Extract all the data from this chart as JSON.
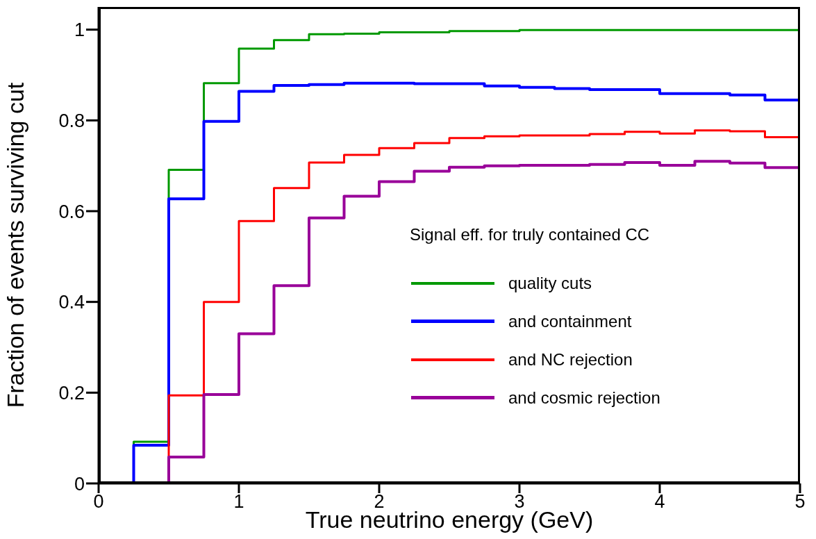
{
  "chart_data": {
    "type": "histogram",
    "xlabel": "True neutrino energy (GeV)",
    "ylabel": "Fraction of events surviving cut",
    "legend_title": "Signal eff. for truly contained CC",
    "legend": "right",
    "grid": false,
    "bins": [
      0,
      0.25,
      0.5,
      0.75,
      1,
      1.25,
      1.5,
      1.75,
      2,
      2.25,
      2.5,
      2.75,
      3,
      3.25,
      3.5,
      3.75,
      4,
      4.25,
      4.5,
      4.75,
      5
    ],
    "xlim": [
      0,
      5
    ],
    "xticks": [
      0,
      1,
      2,
      3,
      4,
      5
    ],
    "ylim": [
      0,
      1.05
    ],
    "yticks": [
      0,
      0.2,
      0.4,
      0.6,
      0.8,
      1
    ],
    "series": [
      {
        "name": "quality cuts",
        "color": "#009900",
        "values": [
          0,
          0.092,
          0.691,
          0.882,
          0.958,
          0.977,
          0.99,
          0.991,
          0.994,
          0.994,
          0.997,
          0.997,
          0.999,
          0.999,
          0.999,
          0.999,
          0.999,
          0.999,
          0.999,
          0.999
        ]
      },
      {
        "name": "and containment",
        "color": "#0000ff",
        "values": [
          0,
          0.084,
          0.627,
          0.798,
          0.864,
          0.877,
          0.879,
          0.882,
          0.882,
          0.881,
          0.881,
          0.876,
          0.873,
          0.87,
          0.868,
          0.868,
          0.859,
          0.859,
          0.856,
          0.845
        ]
      },
      {
        "name": "and NC rejection",
        "color": "#ff0000",
        "values": [
          0,
          0,
          0.194,
          0.4,
          0.578,
          0.651,
          0.707,
          0.724,
          0.739,
          0.75,
          0.761,
          0.765,
          0.767,
          0.767,
          0.77,
          0.775,
          0.771,
          0.778,
          0.776,
          0.763
        ]
      },
      {
        "name": "and cosmic rejection",
        "color": "#990099",
        "values": [
          0,
          0,
          0.058,
          0.196,
          0.33,
          0.436,
          0.585,
          0.633,
          0.665,
          0.688,
          0.697,
          0.7,
          0.701,
          0.701,
          0.703,
          0.707,
          0.701,
          0.71,
          0.706,
          0.696
        ]
      }
    ]
  }
}
